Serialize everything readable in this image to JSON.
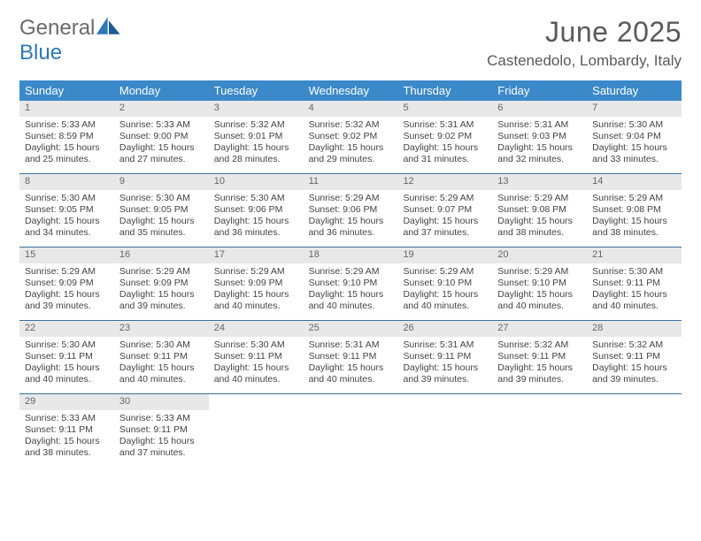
{
  "brand": {
    "part1": "General",
    "part2": "Blue"
  },
  "title": {
    "month": "June 2025",
    "location": "Castenedolo, Lombardy, Italy"
  },
  "colors": {
    "header_bg": "#3b89c9",
    "header_text": "#ffffff",
    "daybar_bg": "#e8e8e8",
    "row_border": "#3b6fa3",
    "brand_gray": "#6a6a6a",
    "brand_blue": "#2f77b7"
  },
  "weekdays": [
    "Sunday",
    "Monday",
    "Tuesday",
    "Wednesday",
    "Thursday",
    "Friday",
    "Saturday"
  ],
  "weeks": [
    [
      {
        "n": "1",
        "sr": "5:33 AM",
        "ss": "8:59 PM",
        "dl": "15 hours and 25 minutes."
      },
      {
        "n": "2",
        "sr": "5:33 AM",
        "ss": "9:00 PM",
        "dl": "15 hours and 27 minutes."
      },
      {
        "n": "3",
        "sr": "5:32 AM",
        "ss": "9:01 PM",
        "dl": "15 hours and 28 minutes."
      },
      {
        "n": "4",
        "sr": "5:32 AM",
        "ss": "9:02 PM",
        "dl": "15 hours and 29 minutes."
      },
      {
        "n": "5",
        "sr": "5:31 AM",
        "ss": "9:02 PM",
        "dl": "15 hours and 31 minutes."
      },
      {
        "n": "6",
        "sr": "5:31 AM",
        "ss": "9:03 PM",
        "dl": "15 hours and 32 minutes."
      },
      {
        "n": "7",
        "sr": "5:30 AM",
        "ss": "9:04 PM",
        "dl": "15 hours and 33 minutes."
      }
    ],
    [
      {
        "n": "8",
        "sr": "5:30 AM",
        "ss": "9:05 PM",
        "dl": "15 hours and 34 minutes."
      },
      {
        "n": "9",
        "sr": "5:30 AM",
        "ss": "9:05 PM",
        "dl": "15 hours and 35 minutes."
      },
      {
        "n": "10",
        "sr": "5:30 AM",
        "ss": "9:06 PM",
        "dl": "15 hours and 36 minutes."
      },
      {
        "n": "11",
        "sr": "5:29 AM",
        "ss": "9:06 PM",
        "dl": "15 hours and 36 minutes."
      },
      {
        "n": "12",
        "sr": "5:29 AM",
        "ss": "9:07 PM",
        "dl": "15 hours and 37 minutes."
      },
      {
        "n": "13",
        "sr": "5:29 AM",
        "ss": "9:08 PM",
        "dl": "15 hours and 38 minutes."
      },
      {
        "n": "14",
        "sr": "5:29 AM",
        "ss": "9:08 PM",
        "dl": "15 hours and 38 minutes."
      }
    ],
    [
      {
        "n": "15",
        "sr": "5:29 AM",
        "ss": "9:09 PM",
        "dl": "15 hours and 39 minutes."
      },
      {
        "n": "16",
        "sr": "5:29 AM",
        "ss": "9:09 PM",
        "dl": "15 hours and 39 minutes."
      },
      {
        "n": "17",
        "sr": "5:29 AM",
        "ss": "9:09 PM",
        "dl": "15 hours and 40 minutes."
      },
      {
        "n": "18",
        "sr": "5:29 AM",
        "ss": "9:10 PM",
        "dl": "15 hours and 40 minutes."
      },
      {
        "n": "19",
        "sr": "5:29 AM",
        "ss": "9:10 PM",
        "dl": "15 hours and 40 minutes."
      },
      {
        "n": "20",
        "sr": "5:29 AM",
        "ss": "9:10 PM",
        "dl": "15 hours and 40 minutes."
      },
      {
        "n": "21",
        "sr": "5:30 AM",
        "ss": "9:11 PM",
        "dl": "15 hours and 40 minutes."
      }
    ],
    [
      {
        "n": "22",
        "sr": "5:30 AM",
        "ss": "9:11 PM",
        "dl": "15 hours and 40 minutes."
      },
      {
        "n": "23",
        "sr": "5:30 AM",
        "ss": "9:11 PM",
        "dl": "15 hours and 40 minutes."
      },
      {
        "n": "24",
        "sr": "5:30 AM",
        "ss": "9:11 PM",
        "dl": "15 hours and 40 minutes."
      },
      {
        "n": "25",
        "sr": "5:31 AM",
        "ss": "9:11 PM",
        "dl": "15 hours and 40 minutes."
      },
      {
        "n": "26",
        "sr": "5:31 AM",
        "ss": "9:11 PM",
        "dl": "15 hours and 39 minutes."
      },
      {
        "n": "27",
        "sr": "5:32 AM",
        "ss": "9:11 PM",
        "dl": "15 hours and 39 minutes."
      },
      {
        "n": "28",
        "sr": "5:32 AM",
        "ss": "9:11 PM",
        "dl": "15 hours and 39 minutes."
      }
    ],
    [
      {
        "n": "29",
        "sr": "5:33 AM",
        "ss": "9:11 PM",
        "dl": "15 hours and 38 minutes."
      },
      {
        "n": "30",
        "sr": "5:33 AM",
        "ss": "9:11 PM",
        "dl": "15 hours and 37 minutes."
      },
      null,
      null,
      null,
      null,
      null
    ]
  ],
  "labels": {
    "sunrise": "Sunrise: ",
    "sunset": "Sunset: ",
    "daylight": "Daylight: "
  }
}
